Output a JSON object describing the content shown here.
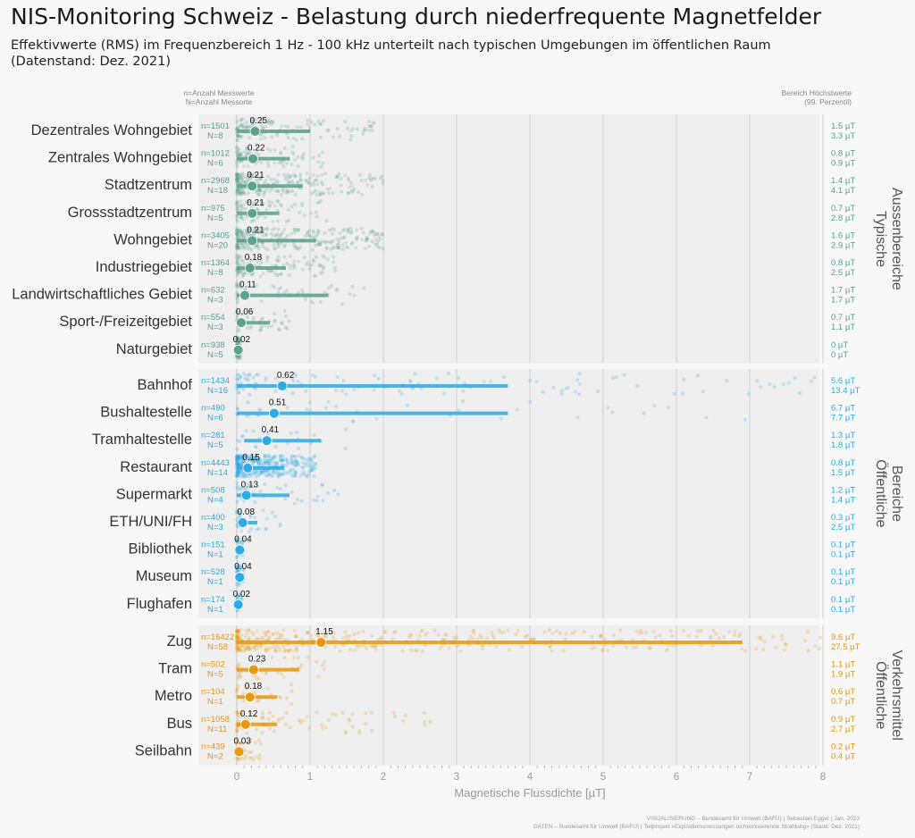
{
  "title": "NIS-Monitoring Schweiz - Belastung durch niederfrequente Magnetfelder",
  "subtitle": "Effektivwerte (RMS) im Frequenzbereich 1 Hz - 100 kHz unterteilt nach typischen Umgebungen im öffentlichen Raum",
  "subtitle2": "(Datenstand: Dez. 2021)",
  "legend_note_left": [
    "n=Anzahl Messwerte",
    "N=Anzahl Messorte"
  ],
  "legend_note_right": [
    "Bereich Höchstwerte",
    "(99. Perzentil)"
  ],
  "footer": [
    "VISUALISIERUNG – Bundesamt für Umwelt (BAFU) | Sebastian Egger | Jan. 2023",
    "DATEN – Bundesamt für Umwelt (BAFU) | Teilprojekt «Expositionsmessungen nichtionisierende Strahlung» (Stand: Dez. 2021)"
  ],
  "colors": {
    "green": "#5a9e8e",
    "blue": "#29a9e3",
    "orange": "#e8960c",
    "background": "#f7f7f7",
    "panel": "#efefef"
  },
  "chart_data": {
    "type": "scatter",
    "xlabel": "Magnetische Flussdichte [µT]",
    "xlim": [
      0,
      8
    ],
    "xticks": [
      "0",
      "1",
      "2",
      "3",
      "4",
      "5",
      "6",
      "7",
      "8"
    ],
    "grid": true,
    "groups": [
      {
        "name": "Typische Aussenbereiche",
        "label_lines": [
          "Typische",
          "Aussenbereiche"
        ],
        "color": "#5a9e8e",
        "items": [
          {
            "category": "Dezentrales Wohngebiet",
            "n": "n=1501",
            "N": "N=8",
            "median": 0.25,
            "median_label": "0.25",
            "range": [
              0,
              1.0
            ],
            "high": [
              "1.5 µT",
              "3.3 µT"
            ],
            "spread": 1.9
          },
          {
            "category": "Zentrales Wohngebiet",
            "n": "n=1012",
            "N": "N=6",
            "median": 0.22,
            "median_label": "0.22",
            "range": [
              0,
              0.72
            ],
            "high": [
              "0.8 µT",
              "0.9 µT"
            ],
            "spread": 1.2
          },
          {
            "category": "Stadtzentrum",
            "n": "n=2968",
            "N": "N=18",
            "median": 0.21,
            "median_label": "0.21",
            "range": [
              0,
              0.9
            ],
            "high": [
              "1.4 µT",
              "4.1 µT"
            ],
            "spread": 2.0
          },
          {
            "category": "Grossstadtzentrum",
            "n": "n=975",
            "N": "N=5",
            "median": 0.21,
            "median_label": "0.21",
            "range": [
              0,
              0.58
            ],
            "high": [
              "0.7 µT",
              "2.8 µT"
            ],
            "spread": 1.3
          },
          {
            "category": "Wohngebiet",
            "n": "n=3405",
            "N": "N=20",
            "median": 0.21,
            "median_label": "0.21",
            "range": [
              0,
              1.08
            ],
            "high": [
              "1.6 µT",
              "2.9 µT"
            ],
            "spread": 2.0
          },
          {
            "category": "Industriegebiet",
            "n": "n=1364",
            "N": "N=8",
            "median": 0.18,
            "median_label": "0.18",
            "range": [
              0,
              0.67
            ],
            "high": [
              "0.8 µT",
              "2.5 µT"
            ],
            "spread": 1.4
          },
          {
            "category": "Landwirtschaftliches Gebiet",
            "n": "n=632",
            "N": "N=3",
            "median": 0.11,
            "median_label": "0.11",
            "range": [
              0,
              1.25
            ],
            "high": [
              "1.7 µT",
              "1.7 µT"
            ],
            "spread": 1.75
          },
          {
            "category": "Sport-/Freizeitgebiet",
            "n": "n=554",
            "N": "N=3",
            "median": 0.06,
            "median_label": "0.06",
            "range": [
              0,
              0.45
            ],
            "high": [
              "0.7 µT",
              "1.1 µT"
            ],
            "spread": 0.8
          },
          {
            "category": "Naturgebiet",
            "n": "n=938",
            "N": "N=5",
            "median": 0.02,
            "median_label": "0.02",
            "range": [
              0,
              0.04
            ],
            "high": [
              "0 µT",
              "0 µT"
            ],
            "spread": 0.05
          }
        ]
      },
      {
        "name": "Öffentliche Bereiche",
        "label_lines": [
          "Öffentliche",
          "Bereiche"
        ],
        "color": "#29a9e3",
        "items": [
          {
            "category": "Bahnhof",
            "n": "n=1434",
            "N": "N=16",
            "median": 0.62,
            "median_label": "0.62",
            "range": [
              0,
              3.7
            ],
            "high": [
              "5.6 µT",
              "13.4 µT"
            ],
            "spread": 8.0
          },
          {
            "category": "Bushaltestelle",
            "n": "n=490",
            "N": "N=6",
            "median": 0.51,
            "median_label": "0.51",
            "range": [
              0,
              3.7
            ],
            "high": [
              "6.7 µT",
              "7.7 µT"
            ],
            "spread": 7.3
          },
          {
            "category": "Tramhaltestelle",
            "n": "n=281",
            "N": "N=5",
            "median": 0.41,
            "median_label": "0.41",
            "range": [
              0.1,
              1.15
            ],
            "high": [
              "1.3 µT",
              "1.8 µT"
            ],
            "spread": 1.5
          },
          {
            "category": "Restaurant",
            "n": "n=4443",
            "N": "N=14",
            "median": 0.15,
            "median_label": "0.15",
            "range": [
              0,
              0.65
            ],
            "high": [
              "0.8 µT",
              "1.5 µT"
            ],
            "spread": 1.1
          },
          {
            "category": "Supermarkt",
            "n": "n=508",
            "N": "N=4",
            "median": 0.13,
            "median_label": "0.13",
            "range": [
              0,
              0.72
            ],
            "high": [
              "1.2 µT",
              "1.4 µT"
            ],
            "spread": 1.4
          },
          {
            "category": "ETH/UNI/FH",
            "n": "n=400",
            "N": "N=3",
            "median": 0.08,
            "median_label": "0.08",
            "range": [
              0,
              0.28
            ],
            "high": [
              "0.3 µT",
              "2.5 µT"
            ],
            "spread": 0.6
          },
          {
            "category": "Bibliothek",
            "n": "n=151",
            "N": "N=1",
            "median": 0.04,
            "median_label": "0.04",
            "range": [
              0,
              0.08
            ],
            "high": [
              "0.1 µT",
              "0.1 µT"
            ],
            "spread": 0.1
          },
          {
            "category": "Museum",
            "n": "n=528",
            "N": "N=1",
            "median": 0.04,
            "median_label": "0.04",
            "range": [
              0,
              0.08
            ],
            "high": [
              "0.1 µT",
              "0.1 µT"
            ],
            "spread": 0.1
          },
          {
            "category": "Flughafen",
            "n": "n=174",
            "N": "N=1",
            "median": 0.02,
            "median_label": "0.02",
            "range": [
              0,
              0.06
            ],
            "high": [
              "0.1 µT",
              "0.1 µT"
            ],
            "spread": 0.08
          }
        ]
      },
      {
        "name": "Öffentliche Verkehrsmittel",
        "label_lines": [
          "Öffentliche",
          "Verkehrsmittel"
        ],
        "color": "#e8960c",
        "items": [
          {
            "category": "Zug",
            "n": "n=16422",
            "N": "N=58",
            "median": 1.15,
            "median_label": "1.15",
            "range": [
              0,
              6.9
            ],
            "high": [
              "9.6 µT",
              "27.5 µT"
            ],
            "spread": 8.0
          },
          {
            "category": "Tram",
            "n": "n=502",
            "N": "N=5",
            "median": 0.23,
            "median_label": "0.23",
            "range": [
              0,
              0.85
            ],
            "high": [
              "1.1 µT",
              "1.9 µT"
            ],
            "spread": 1.3
          },
          {
            "category": "Metro",
            "n": "n=104",
            "N": "N=1",
            "median": 0.18,
            "median_label": "0.18",
            "range": [
              0,
              0.55
            ],
            "high": [
              "0.6 µT",
              "0.7 µT"
            ],
            "spread": 0.9
          },
          {
            "category": "Bus",
            "n": "n=1058",
            "N": "N=11",
            "median": 0.12,
            "median_label": "0.12",
            "range": [
              0,
              0.55
            ],
            "high": [
              "0.9 µT",
              "2.7 µT"
            ],
            "spread": 2.8
          },
          {
            "category": "Seilbahn",
            "n": "n=439",
            "N": "N=2",
            "median": 0.03,
            "median_label": "0.03",
            "range": [
              0,
              0.08
            ],
            "high": [
              "0.2 µT",
              "0.4 µT"
            ],
            "spread": 0.35
          }
        ]
      }
    ]
  }
}
